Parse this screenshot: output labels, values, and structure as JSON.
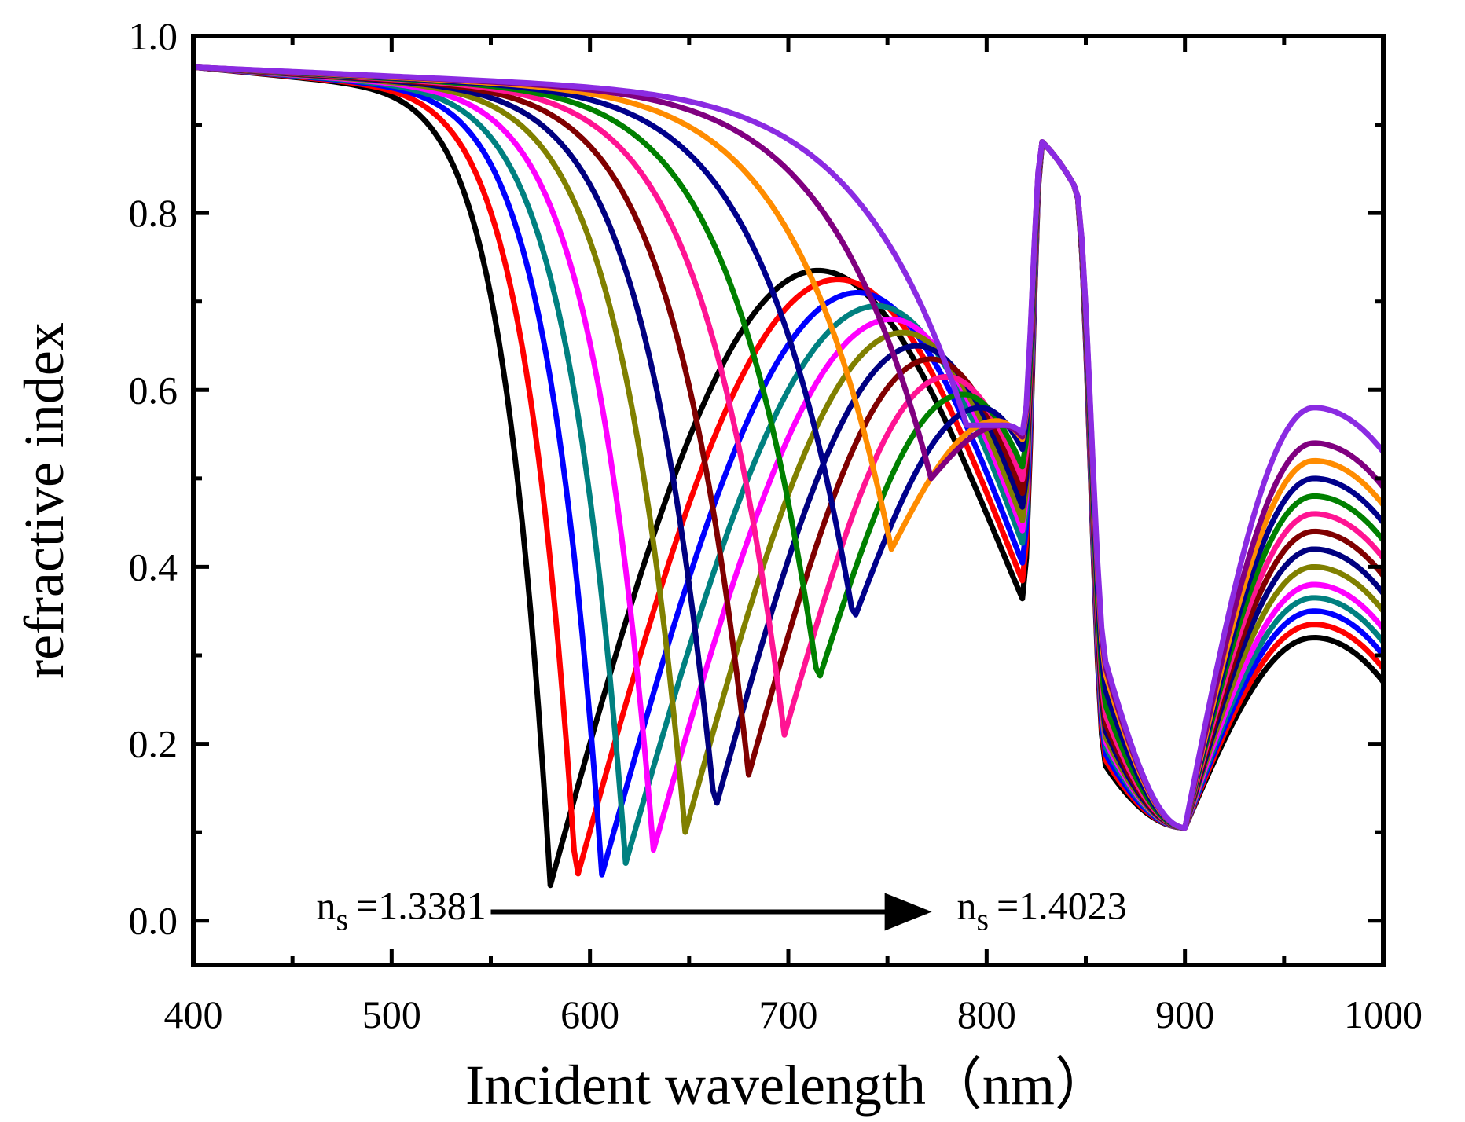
{
  "chart_data": {
    "type": "line",
    "title": "",
    "xlabel": "Incident wavelength（nm）",
    "ylabel": "refractive index",
    "xlim": [
      400,
      1000
    ],
    "ylim": [
      -0.05,
      1.0
    ],
    "xticks": [
      400,
      500,
      600,
      700,
      800,
      900,
      1000
    ],
    "xtick_labels": [
      "400",
      "500",
      "600",
      "700",
      "800",
      "900",
      "1000"
    ],
    "yticks": [
      0.0,
      0.2,
      0.4,
      0.6,
      0.8,
      1.0
    ],
    "ytick_labels": [
      "0.0",
      "0.2",
      "0.4",
      "0.6",
      "0.8",
      "1.0"
    ],
    "grid": false,
    "legend": false,
    "annotations": {
      "start": {
        "prefix": "n",
        "sub": "s",
        "value": "=1.3381"
      },
      "end": {
        "prefix": "n",
        "sub": "s",
        "value": "=1.4023"
      },
      "arrow": {
        "from_x": 550,
        "to_x": 770,
        "y": 0.01
      }
    },
    "series": [
      {
        "color": "#000000",
        "dip_x": 580,
        "dip_y": 0.04,
        "peak_x": 715,
        "peak_y": 0.735,
        "end_y": 0.27
      },
      {
        "color": "#ff0000",
        "dip_x": 593,
        "dip_y": 0.045,
        "peak_x": 725,
        "peak_y": 0.725,
        "end_y": 0.285
      },
      {
        "color": "#0000ff",
        "dip_x": 606,
        "dip_y": 0.052,
        "peak_x": 735,
        "peak_y": 0.71,
        "end_y": 0.3
      },
      {
        "color": "#008080",
        "dip_x": 618,
        "dip_y": 0.065,
        "peak_x": 745,
        "peak_y": 0.695,
        "end_y": 0.315
      },
      {
        "color": "#ff00ff",
        "dip_x": 632,
        "dip_y": 0.08,
        "peak_x": 752,
        "peak_y": 0.68,
        "end_y": 0.33
      },
      {
        "color": "#808000",
        "dip_x": 648,
        "dip_y": 0.1,
        "peak_x": 758,
        "peak_y": 0.665,
        "end_y": 0.35
      },
      {
        "color": "#000080",
        "dip_x": 663,
        "dip_y": 0.125,
        "peak_x": 765,
        "peak_y": 0.65,
        "end_y": 0.37
      },
      {
        "color": "#800000",
        "dip_x": 680,
        "dip_y": 0.165,
        "peak_x": 772,
        "peak_y": 0.635,
        "end_y": 0.39
      },
      {
        "color": "#ff1493",
        "dip_x": 698,
        "dip_y": 0.21,
        "peak_x": 780,
        "peak_y": 0.615,
        "end_y": 0.41
      },
      {
        "color": "#008000",
        "dip_x": 715,
        "dip_y": 0.27,
        "peak_x": 788,
        "peak_y": 0.595,
        "end_y": 0.43
      },
      {
        "color": "#00008b",
        "dip_x": 733,
        "dip_y": 0.34,
        "peak_x": 797,
        "peak_y": 0.58,
        "end_y": 0.45
      },
      {
        "color": "#ff8c00",
        "dip_x": 752,
        "dip_y": 0.42,
        "peak_x": 805,
        "peak_y": 0.565,
        "end_y": 0.47
      },
      {
        "color": "#800080",
        "dip_x": 772,
        "dip_y": 0.5,
        "peak_x": 808,
        "peak_y": 0.56,
        "end_y": 0.49
      },
      {
        "color": "#8b2be2",
        "dip_x": 790,
        "dip_y": 0.56,
        "peak_x": 810,
        "peak_y": 0.56,
        "end_y": 0.53
      }
    ]
  }
}
